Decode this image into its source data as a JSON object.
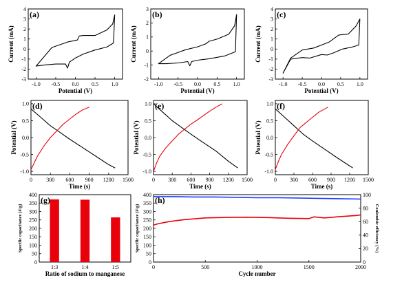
{
  "chart_data": [
    {
      "panel": "(a)",
      "type": "line",
      "xlabel": "Potential (V)",
      "ylabel": "Current (mA)",
      "xlim": [
        -1.2,
        1.2
      ],
      "ylim": [
        -3,
        4
      ],
      "xticks": [
        -1.0,
        -0.5,
        0.0,
        0.5,
        1.0
      ],
      "yticks": [
        -3,
        -2,
        -1,
        0,
        1,
        2,
        3,
        4
      ],
      "xtick_labels": [
        "-1.0",
        "-0.5",
        "0.0",
        "0.5",
        "1.0"
      ],
      "ytick_labels": [
        "-3",
        "-2",
        "-1",
        "0",
        "1",
        "2",
        "3",
        "4"
      ],
      "series": [
        {
          "color": "#000000",
          "x": [
            -1.0,
            -0.6,
            -0.2,
            0.05,
            0.1,
            0.2,
            0.5,
            0.8,
            0.95,
            1.0,
            0.97,
            0.8,
            0.5,
            0.2,
            0.0,
            -0.15,
            -0.2,
            -0.25,
            -0.5,
            -0.8,
            -1.0
          ],
          "y": [
            -1.7,
            0.15,
            0.7,
            0.9,
            1.3,
            1.35,
            1.35,
            1.9,
            2.5,
            3.4,
            0.6,
            0.2,
            -0.1,
            -0.5,
            -0.9,
            -1.3,
            -1.9,
            -1.5,
            -1.5,
            -1.6,
            -1.7
          ]
        }
      ]
    },
    {
      "panel": "(b)",
      "type": "line",
      "xlabel": "Potential (V)",
      "ylabel": "Current (mA)",
      "xlim": [
        -1.2,
        1.2
      ],
      "ylim": [
        -2,
        3
      ],
      "xticks": [
        -1.0,
        -0.5,
        0.0,
        0.5,
        1.0
      ],
      "yticks": [
        -2,
        -1,
        0,
        1,
        2,
        3
      ],
      "xtick_labels": [
        "-1.0",
        "-0.5",
        "0.0",
        "0.5",
        "1.0"
      ],
      "ytick_labels": [
        "-2",
        "-1",
        "0",
        "1",
        "2",
        "3"
      ],
      "series": [
        {
          "color": "#000000",
          "x": [
            -1.0,
            -0.7,
            -0.3,
            0.0,
            0.2,
            0.3,
            0.5,
            0.8,
            0.95,
            1.0,
            0.97,
            0.7,
            0.3,
            0.0,
            -0.15,
            -0.2,
            -0.25,
            -0.5,
            -0.8,
            -1.0
          ],
          "y": [
            -0.9,
            -0.3,
            0.1,
            0.3,
            0.5,
            0.7,
            0.85,
            1.2,
            1.8,
            2.6,
            -0.05,
            -0.35,
            -0.55,
            -0.65,
            -0.75,
            -1.05,
            -0.75,
            -0.85,
            -0.9,
            -0.9
          ]
        }
      ]
    },
    {
      "panel": "(c)",
      "type": "line",
      "xlabel": "Potential (V)",
      "ylabel": "Current (mA)",
      "xlim": [
        -1.2,
        1.2
      ],
      "ylim": [
        -3,
        4
      ],
      "xticks": [
        -1.0,
        -0.5,
        0.0,
        0.5,
        1.0
      ],
      "yticks": [
        -3,
        -2,
        -1,
        0,
        1,
        2,
        3,
        4
      ],
      "xtick_labels": [
        "-1.0",
        "-0.5",
        "0.0",
        "0.5",
        "1.0"
      ],
      "ytick_labels": [
        "-3",
        "-2",
        "-1",
        "0",
        "1",
        "2",
        "3",
        "4"
      ],
      "series": [
        {
          "color": "#000000",
          "x": [
            -1.0,
            -0.8,
            -0.5,
            -0.2,
            0.0,
            0.2,
            0.45,
            0.7,
            0.9,
            1.0,
            0.97,
            0.8,
            0.55,
            0.3,
            0.15,
            0.0,
            -0.3,
            -0.5,
            -0.8,
            -1.0
          ],
          "y": [
            -2.4,
            -0.9,
            -0.1,
            0.1,
            0.4,
            0.7,
            1.4,
            1.5,
            2.3,
            3.0,
            0.4,
            0.2,
            0.0,
            -0.4,
            -0.6,
            -0.55,
            -0.9,
            -0.85,
            -1.0,
            -2.4
          ]
        }
      ]
    },
    {
      "panel": "(d)",
      "type": "line",
      "xlabel": "Time (s)",
      "ylabel": "Potential (V)",
      "xlim": [
        0,
        1500
      ],
      "ylim": [
        -1.1,
        1.1
      ],
      "xticks": [
        0,
        300,
        600,
        900,
        1200,
        1500
      ],
      "yticks": [
        -1.0,
        -0.5,
        0.0,
        0.5,
        1.0
      ],
      "xtick_labels": [
        "0",
        "300",
        "600",
        "900",
        "1200",
        "1500"
      ],
      "ytick_labels": [
        "-1.0",
        "-0.5",
        "0.0",
        "0.5",
        "1.0"
      ],
      "series": [
        {
          "color": "#000000",
          "x": [
            0,
            150,
            300,
            450,
            600,
            800,
            1000,
            1200,
            1300
          ],
          "y": [
            0.85,
            0.6,
            0.35,
            0.15,
            -0.05,
            -0.3,
            -0.55,
            -0.8,
            -0.9
          ]
        },
        {
          "color": "#e8000b",
          "x": [
            0,
            50,
            100,
            200,
            300,
            400,
            500,
            600,
            700,
            800,
            900
          ],
          "y": [
            -0.95,
            -0.75,
            -0.55,
            -0.25,
            0.0,
            0.2,
            0.4,
            0.55,
            0.7,
            0.82,
            0.9
          ]
        }
      ]
    },
    {
      "panel": "(e)",
      "type": "line",
      "xlabel": "Time (s)",
      "ylabel": "Potential (V)",
      "xlim": [
        0,
        1500
      ],
      "ylim": [
        -1.1,
        1.1
      ],
      "xticks": [
        0,
        300,
        600,
        900,
        1200,
        1500
      ],
      "yticks": [
        -1.0,
        -0.5,
        0.0,
        0.5,
        1.0
      ],
      "xtick_labels": [
        "0",
        "300",
        "600",
        "900",
        "1200",
        "1500"
      ],
      "ytick_labels": [
        "-1.0",
        "-0.5",
        "0.0",
        "0.5",
        "1.0"
      ],
      "series": [
        {
          "color": "#000000",
          "x": [
            0,
            150,
            300,
            450,
            600,
            800,
            1000,
            1200,
            1350
          ],
          "y": [
            1.0,
            0.75,
            0.5,
            0.3,
            0.1,
            -0.15,
            -0.4,
            -0.7,
            -0.9
          ]
        },
        {
          "color": "#e8000b",
          "x": [
            0,
            50,
            100,
            200,
            300,
            400,
            500,
            600,
            700,
            800,
            900,
            1000,
            1100
          ],
          "y": [
            -1.0,
            -0.75,
            -0.55,
            -0.3,
            -0.1,
            0.1,
            0.25,
            0.4,
            0.52,
            0.65,
            0.78,
            0.9,
            1.0
          ]
        }
      ]
    },
    {
      "panel": "(f)",
      "type": "line",
      "xlabel": "Time (s)",
      "ylabel": "Potential (V)",
      "xlim": [
        0,
        1500
      ],
      "ylim": [
        -1.1,
        1.1
      ],
      "xticks": [
        0,
        300,
        600,
        900,
        1200,
        1500
      ],
      "yticks": [
        -1.0,
        -0.5,
        0.0,
        0.5,
        1.0
      ],
      "xtick_labels": [
        "0",
        "300",
        "600",
        "900",
        "1200",
        "1500"
      ],
      "ytick_labels": [
        "-1.0",
        "-0.5",
        "0.0",
        "0.5",
        "1.0"
      ],
      "series": [
        {
          "color": "#000000",
          "x": [
            0,
            150,
            300,
            450,
            600,
            800,
            1000,
            1250
          ],
          "y": [
            0.85,
            0.6,
            0.35,
            0.1,
            -0.1,
            -0.35,
            -0.6,
            -0.9
          ]
        },
        {
          "color": "#e8000b",
          "x": [
            0,
            50,
            100,
            200,
            300,
            400,
            500,
            600,
            700,
            800,
            850
          ],
          "y": [
            -0.95,
            -0.7,
            -0.5,
            -0.2,
            0.05,
            0.3,
            0.45,
            0.6,
            0.75,
            0.85,
            0.9
          ]
        }
      ]
    },
    {
      "panel": "(g)",
      "type": "bar",
      "xlabel": "Ratio of sodium to manganese",
      "ylabel": "Specific capacitance (F/g)",
      "ylim": [
        0,
        400
      ],
      "yticks": [
        0,
        50,
        100,
        150,
        200,
        250,
        300,
        350,
        400
      ],
      "ytick_labels": [
        "0",
        "50",
        "100",
        "150",
        "200",
        "250",
        "300",
        "350",
        "400"
      ],
      "categories": [
        "1:3",
        "1:4",
        "1:5"
      ],
      "values": [
        372,
        370,
        265
      ],
      "color": "#e8000b"
    },
    {
      "panel": "(h)",
      "type": "line",
      "xlabel": "Cycle number",
      "ylabel": "Specific capacitance (F/g)",
      "y2label": "Coulombic efficiency (%)",
      "xlim": [
        0,
        2000
      ],
      "ylim": [
        0,
        400
      ],
      "y2lim": [
        0,
        100
      ],
      "xticks": [
        0,
        500,
        1000,
        1500,
        2000
      ],
      "yticks": [
        0,
        50,
        100,
        150,
        200,
        250,
        300,
        350,
        400
      ],
      "y2ticks": [
        0,
        20,
        40,
        60,
        80,
        100
      ],
      "xtick_labels": [
        "0",
        "500",
        "1000",
        "1500",
        "2000"
      ],
      "ytick_labels": [
        "0",
        "50",
        "100",
        "150",
        "200",
        "250",
        "300",
        "350",
        "400"
      ],
      "y2tick_labels": [
        "0",
        "20",
        "40",
        "60",
        "80",
        "100"
      ],
      "series": [
        {
          "color": "#1f3fff",
          "axis": "y2",
          "x": [
            0,
            200,
            400,
            600,
            800,
            1000,
            1200,
            1400,
            1600,
            1800,
            2000
          ],
          "y": [
            97,
            97,
            96.5,
            96.5,
            96,
            95.5,
            95.5,
            95,
            94.5,
            94,
            93.5
          ]
        },
        {
          "color": "#e8000b",
          "axis": "y",
          "x": [
            0,
            50,
            150,
            300,
            500,
            700,
            900,
            1100,
            1300,
            1500,
            1550,
            1650,
            1800,
            1950,
            2000
          ],
          "y": [
            220,
            228,
            240,
            252,
            262,
            265,
            266,
            264,
            260,
            258,
            268,
            262,
            270,
            276,
            280
          ]
        }
      ]
    }
  ]
}
